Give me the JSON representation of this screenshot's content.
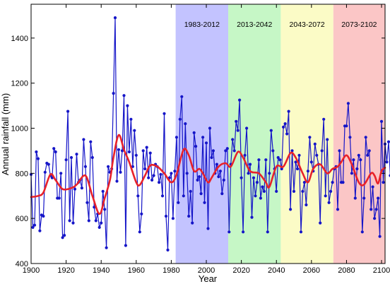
{
  "chart_data": {
    "type": "line",
    "xlabel": "Year",
    "ylabel": "Annual rainfall (mm)",
    "xlim": [
      1900,
      2102
    ],
    "ylim": [
      400,
      1550
    ],
    "xticks": [
      1900,
      1920,
      1940,
      1960,
      1980,
      2000,
      2020,
      2040,
      2060,
      2080,
      2100
    ],
    "yticks": [
      400,
      600,
      800,
      1000,
      1200,
      1400
    ],
    "grid": false,
    "periods": [
      {
        "label": "1983-2012",
        "start": 1982.5,
        "end": 2012.5,
        "color": "#c3c3ff"
      },
      {
        "label": "2013-2042",
        "start": 2012.5,
        "end": 2042.5,
        "color": "#c6f7c6"
      },
      {
        "label": "2043-2072",
        "start": 2042.5,
        "end": 2072.5,
        "color": "#fbfbc6"
      },
      {
        "label": "2073-2102",
        "start": 2072.5,
        "end": 2102,
        "color": "#fbc6c6"
      }
    ],
    "series": [
      {
        "color": "#1515c8",
        "style": "line-with-markers",
        "x_start": 1900,
        "values": [
          795,
          560,
          570,
          895,
          865,
          545,
          615,
          610,
          805,
          845,
          840,
          790,
          780,
          910,
          895,
          690,
          690,
          800,
          515,
          525,
          860,
          1075,
          590,
          870,
          580,
          730,
          885,
          760,
          770,
          735,
          950,
          830,
          670,
          590,
          940,
          870,
          650,
          590,
          620,
          560,
          580,
          720,
          640,
          470,
          830,
          805,
          820,
          1155,
          1490,
          765,
          905,
          805,
          900,
          1145,
          480,
          1100,
          895,
          1040,
          830,
          990,
          880,
          700,
          540,
          620,
          900,
          820,
          915,
          780,
          890,
          770,
          790,
          840,
          830,
          760,
          795,
          700,
          1065,
          610,
          460,
          780,
          800,
          600,
          810,
          960,
          670,
          1040,
          1140,
          700,
          1020,
          800,
          610,
          720,
          580,
          980,
          920,
          770,
          785,
          710,
          960,
          670,
          935,
          555,
          1000,
          870,
          900,
          800,
          840,
          785,
          810,
          710,
          770,
          900,
          910,
          540,
          840,
          950,
          900,
          1030,
          990,
          1125,
          780,
          540,
          880,
          1000,
          800,
          840,
          605,
          780,
          700,
          760,
          860,
          690,
          740,
          720,
          860,
          540,
          800,
          990,
          900,
          820,
          720,
          870,
          860,
          820,
          1005,
          1020,
          975,
          1075,
          640,
          900,
          720,
          850,
          820,
          880,
          540,
          720,
          760,
          660,
          810,
          960,
          850,
          810,
          930,
          880,
          840,
          580,
          900,
          1040,
          700,
          950,
          670,
          720,
          760,
          820,
          830,
          640,
          900,
          760,
          760,
          1010,
          1010,
          1110,
          960,
          800,
          860,
          690,
          820,
          880,
          860,
          540,
          690,
          960,
          880,
          900,
          640,
          740,
          600,
          640,
          690,
          520,
          1030,
          760,
          930,
          850,
          940,
          790,
          780
        ]
      },
      {
        "color": "#e8222a",
        "style": "smooth",
        "points": [
          [
            1900,
            695
          ],
          [
            1904,
            700
          ],
          [
            1907,
            715
          ],
          [
            1911,
            795
          ],
          [
            1914,
            770
          ],
          [
            1918,
            730
          ],
          [
            1923,
            735
          ],
          [
            1926,
            750
          ],
          [
            1931,
            790
          ],
          [
            1935,
            700
          ],
          [
            1939,
            620
          ],
          [
            1942,
            690
          ],
          [
            1945,
            770
          ],
          [
            1947,
            870
          ],
          [
            1950,
            970
          ],
          [
            1953,
            905
          ],
          [
            1956,
            850
          ],
          [
            1960,
            760
          ],
          [
            1962,
            748
          ],
          [
            1965,
            790
          ],
          [
            1968,
            835
          ],
          [
            1972,
            830
          ],
          [
            1976,
            800
          ],
          [
            1980,
            760
          ],
          [
            1983,
            795
          ],
          [
            1987,
            905
          ],
          [
            1990,
            880
          ],
          [
            1993,
            810
          ],
          [
            1996,
            820
          ],
          [
            1998,
            800
          ],
          [
            2001,
            760
          ],
          [
            2003,
            780
          ],
          [
            2007,
            830
          ],
          [
            2011,
            845
          ],
          [
            2014,
            830
          ],
          [
            2018,
            895
          ],
          [
            2021,
            870
          ],
          [
            2025,
            810
          ],
          [
            2030,
            800
          ],
          [
            2034,
            760
          ],
          [
            2036,
            740
          ],
          [
            2040,
            830
          ],
          [
            2044,
            830
          ],
          [
            2048,
            890
          ],
          [
            2051,
            870
          ],
          [
            2055,
            800
          ],
          [
            2058,
            760
          ],
          [
            2061,
            820
          ],
          [
            2065,
            840
          ],
          [
            2069,
            800
          ],
          [
            2072,
            820
          ],
          [
            2075,
            830
          ],
          [
            2077,
            850
          ],
          [
            2080,
            880
          ],
          [
            2083,
            840
          ],
          [
            2087,
            760
          ],
          [
            2090,
            750
          ],
          [
            2094,
            800
          ],
          [
            2096,
            790
          ],
          [
            2098,
            755
          ],
          [
            2100,
            810
          ],
          [
            2102,
            825
          ]
        ]
      }
    ]
  }
}
